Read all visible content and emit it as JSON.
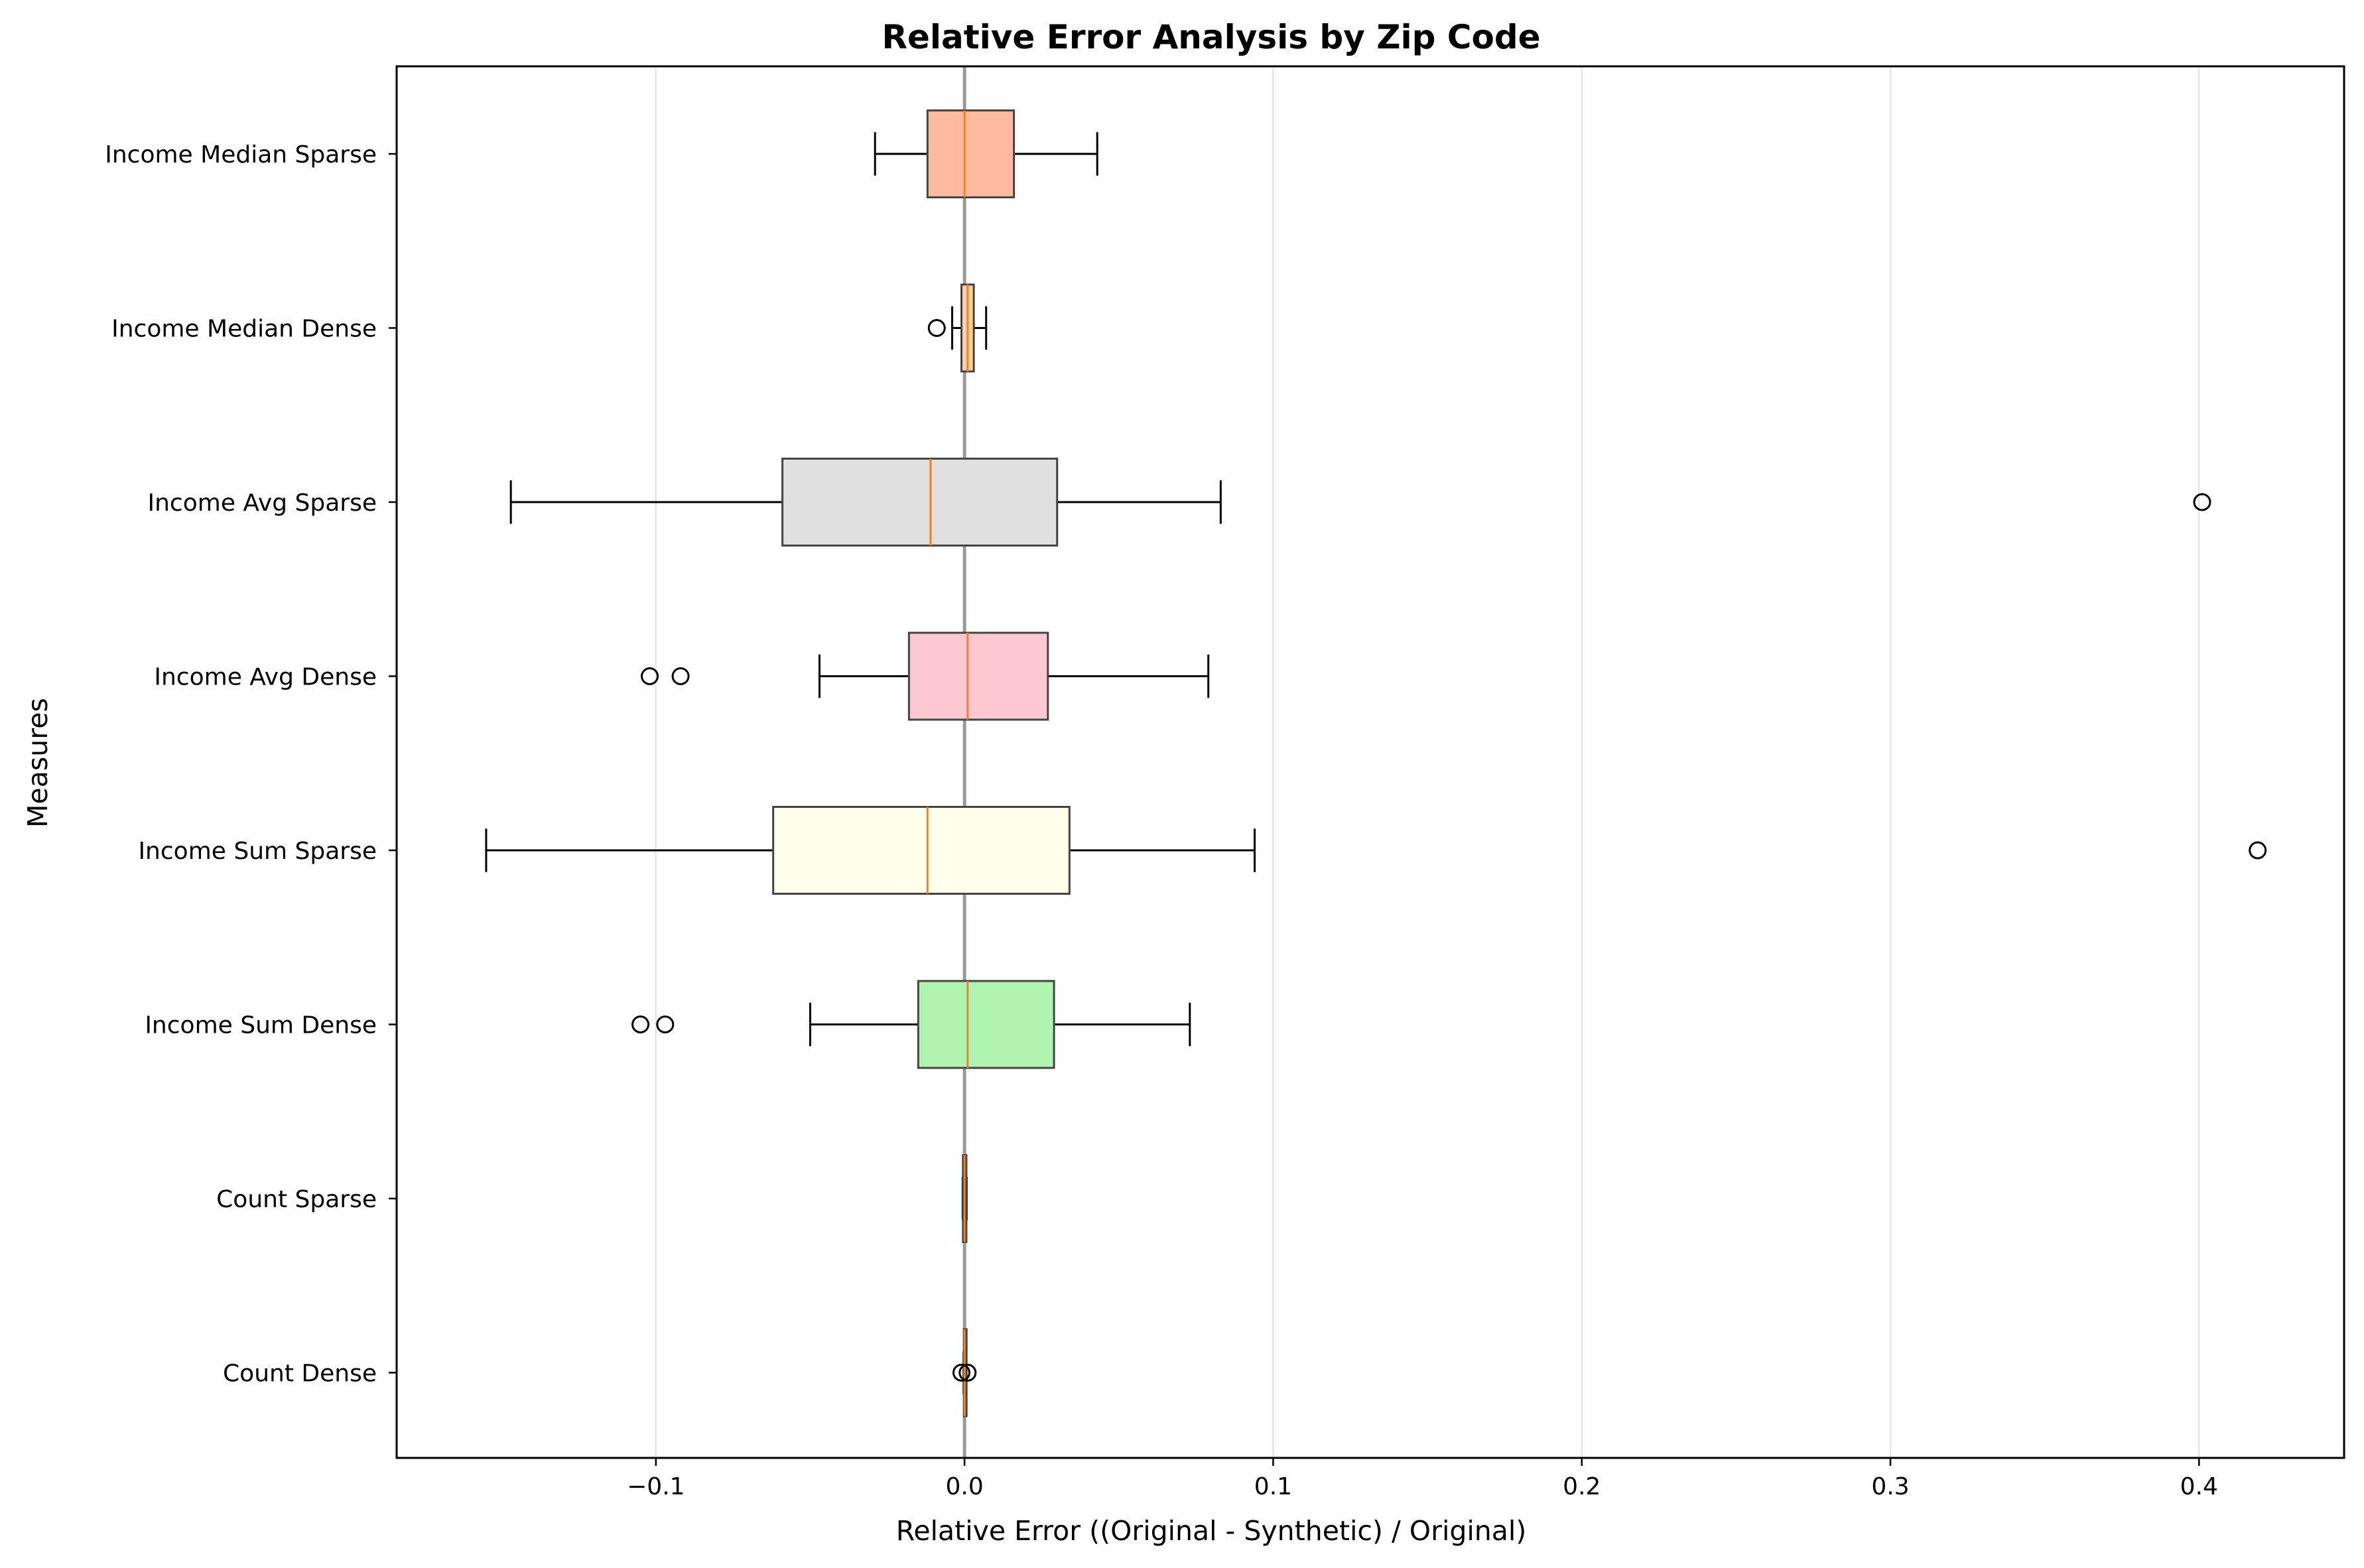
{
  "chart_data": {
    "type": "boxplot",
    "orientation": "horizontal",
    "title": "Relative Error Analysis by Zip Code",
    "xlabel": "Relative Error ((Original - Synthetic) / Original)",
    "ylabel": "Measures",
    "xlim": [
      -0.184,
      0.447
    ],
    "xticks": [
      {
        "value": -0.1,
        "label": "−0.1"
      },
      {
        "value": 0.0,
        "label": "0.0"
      },
      {
        "value": 0.1,
        "label": "0.1"
      },
      {
        "value": 0.2,
        "label": "0.2"
      },
      {
        "value": 0.3,
        "label": "0.3"
      },
      {
        "value": 0.4,
        "label": "0.4"
      }
    ],
    "grid": {
      "x": true,
      "y": false
    },
    "reference_line": {
      "x": 0.0,
      "color": "#999999"
    },
    "median_color": "#ff7f0e",
    "series": [
      {
        "label": "Income Median Sparse",
        "color": "#ffbba1",
        "whisker_low": -0.029,
        "q1": -0.012,
        "median": 0.0,
        "q3": 0.016,
        "whisker_high": 0.043,
        "outliers": []
      },
      {
        "label": "Income Median Dense",
        "color": "#ffd1a8",
        "whisker_low": -0.004,
        "q1": -0.001,
        "median": 0.001,
        "q3": 0.003,
        "whisker_high": 0.007,
        "outliers": [
          -0.009
        ]
      },
      {
        "label": "Income Avg Sparse",
        "color": "#e0e0e0",
        "whisker_low": -0.147,
        "q1": -0.059,
        "median": -0.011,
        "q3": 0.03,
        "whisker_high": 0.083,
        "outliers": [
          0.401
        ]
      },
      {
        "label": "Income Avg Dense",
        "color": "#ffc9d3",
        "whisker_low": -0.047,
        "q1": -0.018,
        "median": 0.001,
        "q3": 0.027,
        "whisker_high": 0.079,
        "outliers": [
          -0.102,
          -0.092
        ]
      },
      {
        "label": "Income Sum Sparse",
        "color": "#ffffea",
        "whisker_low": -0.155,
        "q1": -0.062,
        "median": -0.012,
        "q3": 0.034,
        "whisker_high": 0.094,
        "outliers": [
          0.419
        ]
      },
      {
        "label": "Income Sum Dense",
        "color": "#aff4b0",
        "whisker_low": -0.05,
        "q1": -0.015,
        "median": 0.001,
        "q3": 0.029,
        "whisker_high": 0.073,
        "outliers": [
          -0.105,
          -0.097
        ]
      },
      {
        "label": "Count Sparse",
        "color": "#ffa07a",
        "whisker_low": -0.0006,
        "q1": -0.0005,
        "median": 0.0,
        "q3": 0.0006,
        "whisker_high": 0.0007,
        "outliers": []
      },
      {
        "label": "Count Dense",
        "color": "#ffb07a",
        "whisker_low": -0.0003,
        "q1": -0.0002,
        "median": 0.0,
        "q3": 0.0002,
        "whisker_high": 0.0003,
        "outliers": [
          -0.001,
          0.001
        ]
      }
    ]
  }
}
